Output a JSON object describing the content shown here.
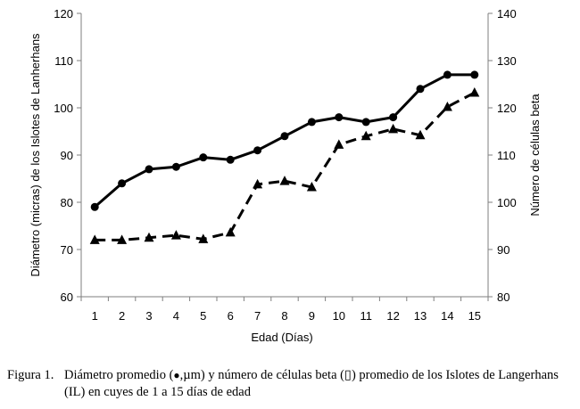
{
  "chart_data": {
    "type": "line",
    "xlabel": "Edad (Días)",
    "ylabel_left": "Diámetro (micras) de los Islotes de Lanherhans",
    "ylabel_right": "Número de células beta",
    "x": [
      1,
      2,
      3,
      4,
      5,
      6,
      7,
      8,
      9,
      10,
      11,
      12,
      13,
      14,
      15
    ],
    "y_left_range": [
      60,
      120
    ],
    "y_left_ticks": [
      60,
      70,
      80,
      90,
      100,
      110,
      120
    ],
    "y_right_range": [
      80,
      140
    ],
    "y_right_ticks": [
      80,
      90,
      100,
      110,
      120,
      130,
      140
    ],
    "grid": false,
    "legend": "none",
    "series": [
      {
        "axis": "left",
        "marker": "circle",
        "line_style": "solid",
        "color": "#000000",
        "values": [
          79,
          84,
          87,
          87.5,
          89.5,
          89,
          91,
          94,
          97,
          98,
          97,
          98,
          104,
          107,
          107
        ]
      },
      {
        "axis": "right",
        "marker": "triangle",
        "line_style": "dashed",
        "color": "#000000",
        "values": [
          92,
          92,
          92.5,
          93,
          92.2,
          93.6,
          103.8,
          104.5,
          103.2,
          112.2,
          114,
          115.5,
          114.2,
          120.2,
          123.2
        ]
      }
    ]
  },
  "caption": {
    "label": "Figura 1.",
    "text_before": "Diámetro promedio (",
    "circle_symbol": "●",
    "text_middle": ",µm) y número de células beta (",
    "triangle_symbol": "▯",
    "text_after": ") promedio de los Islotes de Langerhans (IL) en cuyes de 1 a 15 días de edad"
  }
}
